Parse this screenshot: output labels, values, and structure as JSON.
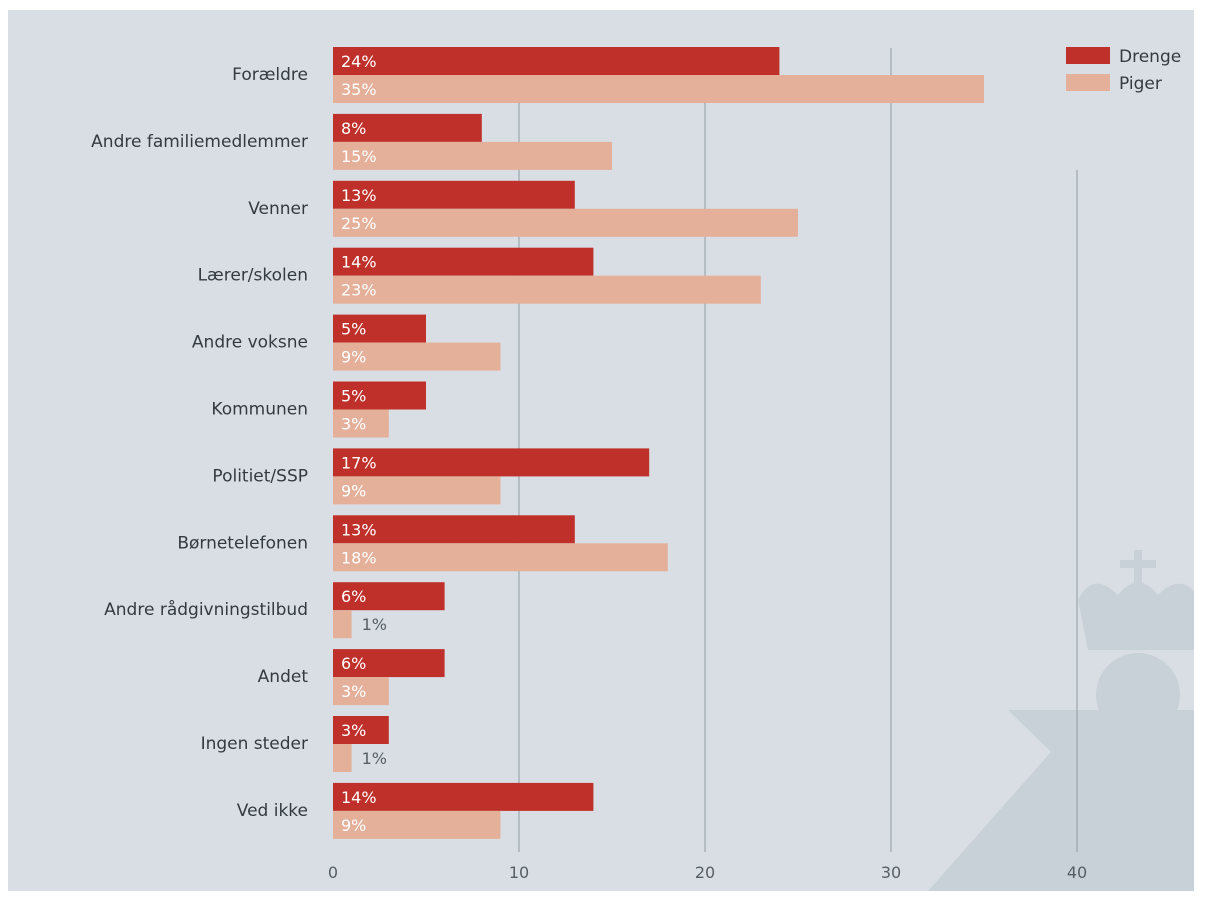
{
  "chart_data": {
    "type": "bar",
    "orientation": "horizontal",
    "categories": [
      "Forældre",
      "Andre familiemedlemmer",
      "Venner",
      "Lærer/skolen",
      "Andre voksne",
      "Kommunen",
      "Politiet/SSP",
      "Børnetelefonen",
      "Andre rådgivningstilbud",
      "Andet",
      "Ingen steder",
      "Ved ikke"
    ],
    "series": [
      {
        "name": "Drenge",
        "color": "#c0302a",
        "values": [
          24,
          8,
          13,
          14,
          5,
          5,
          17,
          13,
          6,
          6,
          3,
          14
        ],
        "labels": [
          "24%",
          "8%",
          "13%",
          "14%",
          "5%",
          "5%",
          "17%",
          "13%",
          "6%",
          "6%",
          "3%",
          "14%"
        ]
      },
      {
        "name": "Piger",
        "color": "#e4b09a",
        "values": [
          35,
          15,
          25,
          23,
          9,
          3,
          9,
          18,
          1,
          3,
          1,
          9
        ],
        "labels": [
          "35%",
          "15%",
          "25%",
          "23%",
          "9%",
          "3%",
          "9%",
          "18%",
          "1%",
          "3%",
          "1%",
          "9%"
        ]
      }
    ],
    "xlim": [
      0,
      40
    ],
    "xticks": [
      0,
      10,
      20,
      30,
      40
    ],
    "tick_labels": [
      "0",
      "10",
      "20",
      "30",
      "40"
    ],
    "grid": true,
    "legend_position": "top-right",
    "colors": {
      "background": "#d8dee4",
      "grid": "#8f9aa4",
      "watermark": "#c9d1d8"
    }
  }
}
